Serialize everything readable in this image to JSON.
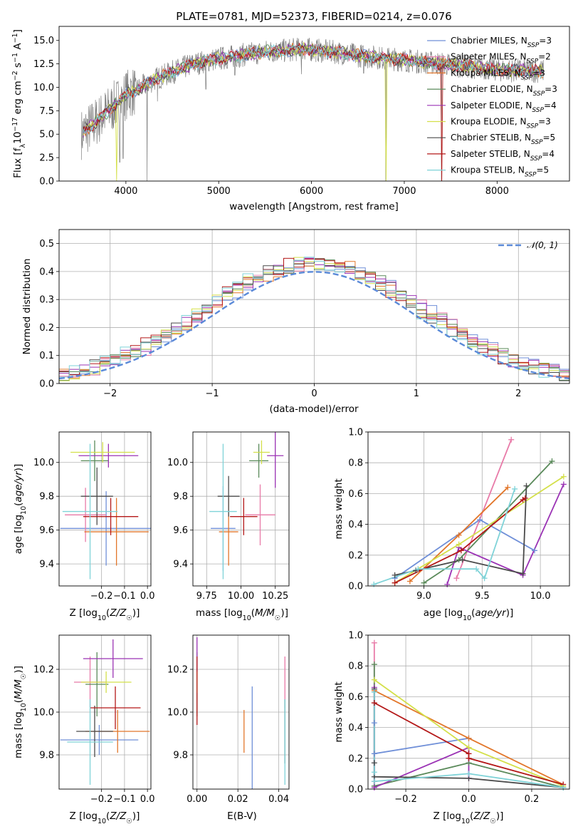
{
  "figure_title": "PLATE=0781, MJD=52373, FIBERID=0214, z=0.076",
  "legend": [
    {
      "label": "Chabrier MILES, N_SSP=3",
      "color": "#6f8fd8"
    },
    {
      "label": "Salpeter MILES, N_SSP=2",
      "color": "#e87aa8"
    },
    {
      "label": "Kroupa MILES, N_SSP=3",
      "color": "#e2762a"
    },
    {
      "label": "Chabrier ELODIE, N_SSP=3",
      "color": "#5a8a5a"
    },
    {
      "label": "Salpeter ELODIE, N_SSP=4",
      "color": "#9b33b5"
    },
    {
      "label": "Kroupa ELODIE, N_SSP=3",
      "color": "#d4e04a"
    },
    {
      "label": "Chabrier STELIB, N_SSP=5",
      "color": "#4a4a4a"
    },
    {
      "label": "Salpeter STELIB, N_SSP=4",
      "color": "#b41818"
    },
    {
      "label": "Kroupa STELIB, N_SSP=5",
      "color": "#7fd3d8"
    }
  ],
  "chart_data": [
    {
      "id": "spectrum",
      "type": "line",
      "xlabel": "wavelength [Angstrom, rest frame]",
      "ylabel": "Flux [f_λ10^-17 erg cm^-2 s^-1 A^-1]",
      "xlim": [
        3280,
        8780
      ],
      "ylim": [
        0,
        16.5
      ],
      "xticks": [
        4000,
        5000,
        6000,
        7000,
        8000
      ],
      "yticks": [
        0.0,
        2.5,
        5.0,
        7.5,
        10.0,
        12.5,
        15.0
      ],
      "grid": false,
      "legend_position": "right",
      "data_color": "#808080",
      "data_anchor_x": [
        3520,
        3700,
        3850,
        4000,
        4150,
        4300,
        4500,
        4700,
        4900,
        5100,
        5300,
        5500,
        5700,
        5900,
        6100,
        6300,
        6500,
        6700,
        6900,
        7100,
        7300,
        7500,
        7700,
        7900,
        8100,
        8300,
        8500
      ],
      "data_anchor_y": [
        5.0,
        6.5,
        7.8,
        9.2,
        9.9,
        10.8,
        11.6,
        12.4,
        12.9,
        13.2,
        13.5,
        13.8,
        13.9,
        14.1,
        13.9,
        13.7,
        13.4,
        13.2,
        13.0,
        12.8,
        12.6,
        12.4,
        12.2,
        12.0,
        11.8,
        11.8,
        11.7
      ],
      "drops": [
        {
          "x": 3935,
          "y": 2.0
        },
        {
          "x": 3970,
          "y": 2.4
        },
        {
          "x": 4228,
          "y": 0.0
        },
        {
          "x": 4340,
          "y": 8.5
        },
        {
          "x": 4861,
          "y": 9.8
        },
        {
          "x": 5175,
          "y": 11.3
        },
        {
          "x": 5892,
          "y": 11.4
        },
        {
          "x": 6563,
          "y": 11.5
        },
        {
          "x": 6800,
          "y": 0.0
        },
        {
          "x": 7400,
          "y": 0.0
        },
        {
          "x": 8540,
          "y": 9.8
        }
      ]
    },
    {
      "id": "residuals",
      "type": "histogram",
      "xlabel": "(data-model)/error",
      "ylabel": "Normed distribution",
      "xlim": [
        -2.5,
        2.5
      ],
      "ylim": [
        0,
        0.55
      ],
      "xticks": [
        -2,
        -1,
        0,
        1,
        2
      ],
      "yticks": [
        0.0,
        0.1,
        0.2,
        0.3,
        0.4,
        0.5
      ],
      "grid": true,
      "bin_width": 0.1,
      "reference_curve": {
        "label": "𝒩(0, 1)",
        "color": "#5b8ad8",
        "style": "dashed"
      },
      "legend_position": "top-right"
    },
    {
      "id": "age_vs_Z",
      "type": "errorbar",
      "xlabel": "Z [log10(Z/Z☉)]",
      "ylabel": "age  [log10(age/yr)]",
      "xlim": [
        -0.385,
        0.015
      ],
      "ylim": [
        9.27,
        10.18
      ],
      "xticks": [
        -0.2,
        -0.1,
        0.0
      ],
      "yticks": [
        9.4,
        9.6,
        9.8,
        10.0
      ],
      "grid": true,
      "points": [
        {
          "series": 0,
          "x": -0.18,
          "xerr": 0.2,
          "y": 9.61,
          "yerr": 0.22
        },
        {
          "series": 1,
          "x": -0.27,
          "xerr": 0.09,
          "y": 9.69,
          "yerr": 0.16
        },
        {
          "series": 2,
          "x": -0.135,
          "xerr": 0.14,
          "y": 9.59,
          "yerr": 0.2
        },
        {
          "series": 3,
          "x": -0.23,
          "xerr": 0.06,
          "y": 10.01,
          "yerr": 0.12
        },
        {
          "series": 4,
          "x": -0.17,
          "xerr": 0.13,
          "y": 10.04,
          "yerr": 0.07
        },
        {
          "series": 5,
          "x": -0.195,
          "xerr": 0.14,
          "y": 10.06,
          "yerr": 0.06
        },
        {
          "series": 6,
          "x": -0.22,
          "xerr": 0.07,
          "y": 9.8,
          "yerr": 0.17
        },
        {
          "series": 7,
          "x": -0.16,
          "xerr": 0.12,
          "y": 9.68,
          "yerr": 0.11
        },
        {
          "series": 8,
          "x": -0.25,
          "xerr": 0.12,
          "y": 9.71,
          "yerr": 0.4
        }
      ]
    },
    {
      "id": "age_vs_mass",
      "type": "errorbar",
      "xlabel": "mass [log10(M/M☉)]",
      "ylabel": "",
      "xlim": [
        9.65,
        10.35
      ],
      "ylim": [
        9.27,
        10.18
      ],
      "xticks": [
        9.75,
        10.0,
        10.25
      ],
      "yticks": [
        9.4,
        9.6,
        9.8,
        10.0
      ],
      "grid": true,
      "points": [
        {
          "series": 0,
          "x": 9.87,
          "xerr": 0.09,
          "y": 9.61,
          "yerr": 0.25
        },
        {
          "series": 1,
          "x": 10.14,
          "xerr": 0.11,
          "y": 9.69,
          "yerr": 0.18
        },
        {
          "series": 2,
          "x": 9.91,
          "xerr": 0.07,
          "y": 9.59,
          "yerr": 0.2
        },
        {
          "series": 3,
          "x": 10.13,
          "xerr": 0.07,
          "y": 10.01,
          "yerr": 0.1
        },
        {
          "series": 4,
          "x": 10.25,
          "xerr": 0.06,
          "y": 10.04,
          "yerr": 0.19
        },
        {
          "series": 5,
          "x": 10.15,
          "xerr": 0.06,
          "y": 10.06,
          "yerr": 0.07
        },
        {
          "series": 6,
          "x": 9.91,
          "xerr": 0.08,
          "y": 9.8,
          "yerr": 0.12
        },
        {
          "series": 7,
          "x": 10.02,
          "xerr": 0.1,
          "y": 9.68,
          "yerr": 0.11
        },
        {
          "series": 8,
          "x": 9.87,
          "xerr": 0.1,
          "y": 9.71,
          "yerr": 0.4
        }
      ]
    },
    {
      "id": "weight_vs_age",
      "type": "line",
      "xlabel": "age  [log10(age/yr)]",
      "ylabel": "mass weight",
      "xlim": [
        8.52,
        10.25
      ],
      "ylim": [
        0,
        1.0
      ],
      "xticks": [
        9.0,
        9.5,
        10.0
      ],
      "yticks": [
        0.0,
        0.2,
        0.4,
        0.6,
        0.8,
        1.0
      ],
      "grid": true,
      "series": [
        {
          "series": 0,
          "points": [
            [
              8.75,
              0.05
            ],
            [
              9.48,
              0.43
            ],
            [
              9.95,
              0.23
            ]
          ]
        },
        {
          "series": 1,
          "points": [
            [
              9.28,
              0.05
            ],
            [
              9.75,
              0.95
            ]
          ]
        },
        {
          "series": 2,
          "points": [
            [
              8.88,
              0.03
            ],
            [
              9.3,
              0.33
            ],
            [
              9.72,
              0.64
            ]
          ]
        },
        {
          "series": 3,
          "points": [
            [
              9.0,
              0.02
            ],
            [
              9.3,
              0.17
            ],
            [
              10.1,
              0.81
            ]
          ]
        },
        {
          "series": 4,
          "points": [
            [
              9.2,
              0.01
            ],
            [
              9.3,
              0.25
            ],
            [
              9.85,
              0.07
            ],
            [
              10.2,
              0.66
            ]
          ]
        },
        {
          "series": 5,
          "points": [
            [
              8.75,
              0.02
            ],
            [
              9.3,
              0.27
            ],
            [
              10.2,
              0.71
            ]
          ]
        },
        {
          "series": 6,
          "points": [
            [
              8.75,
              0.07
            ],
            [
              8.93,
              0.1
            ],
            [
              9.33,
              0.17
            ],
            [
              9.85,
              0.08
            ],
            [
              9.88,
              0.65
            ]
          ]
        },
        {
          "series": 7,
          "points": [
            [
              8.75,
              0.02
            ],
            [
              9.32,
              0.23
            ],
            [
              9.85,
              0.56
            ],
            [
              9.87,
              0.57
            ]
          ]
        },
        {
          "series": 8,
          "points": [
            [
              8.57,
              0.01
            ],
            [
              8.95,
              0.11
            ],
            [
              9.45,
              0.11
            ],
            [
              9.52,
              0.05
            ],
            [
              9.78,
              0.63
            ]
          ]
        }
      ]
    },
    {
      "id": "mass_vs_Z",
      "type": "errorbar",
      "xlabel": "Z [log10(Z/Z☉)]",
      "ylabel": "mass [log10(M/M☉)]",
      "xlim": [
        -0.385,
        0.015
      ],
      "ylim": [
        9.64,
        10.36
      ],
      "xticks": [
        -0.2,
        -0.1,
        0.0
      ],
      "yticks": [
        9.8,
        10.0,
        10.2
      ],
      "grid": true,
      "points": [
        {
          "series": 0,
          "x": -0.21,
          "xerr": 0.17,
          "y": 9.87,
          "yerr": 0.07
        },
        {
          "series": 1,
          "x": -0.25,
          "xerr": 0.07,
          "y": 10.14,
          "yerr": 0.12
        },
        {
          "series": 2,
          "x": -0.13,
          "xerr": 0.14,
          "y": 9.91,
          "yerr": 0.1
        },
        {
          "series": 3,
          "x": -0.22,
          "xerr": 0.05,
          "y": 10.13,
          "yerr": 0.15
        },
        {
          "series": 4,
          "x": -0.15,
          "xerr": 0.13,
          "y": 10.25,
          "yerr": 0.09
        },
        {
          "series": 5,
          "x": -0.18,
          "xerr": 0.11,
          "y": 10.14,
          "yerr": 0.05
        },
        {
          "series": 6,
          "x": -0.23,
          "xerr": 0.08,
          "y": 9.91,
          "yerr": 0.12
        },
        {
          "series": 7,
          "x": -0.14,
          "xerr": 0.11,
          "y": 10.02,
          "yerr": 0.1
        },
        {
          "series": 8,
          "x": -0.25,
          "xerr": 0.1,
          "y": 9.86,
          "yerr": 0.2
        }
      ]
    },
    {
      "id": "mass_vs_ebv",
      "type": "errorbar",
      "xlabel": "E(B-V)",
      "ylabel": "",
      "xlim": [
        -0.002,
        0.045
      ],
      "ylim": [
        9.64,
        10.36
      ],
      "xticks": [
        0.0,
        0.02,
        0.04
      ],
      "yticks": [
        9.8,
        10.0,
        10.2
      ],
      "grid": true,
      "points": [
        {
          "series": 0,
          "x": 0.027,
          "y": 9.87,
          "yerr": 0.25
        },
        {
          "series": 1,
          "x": 0.043,
          "y": 10.14,
          "yerr": 0.12
        },
        {
          "series": 2,
          "x": 0.023,
          "y": 9.91,
          "yerr": 0.1
        },
        {
          "series": 3,
          "x": 0.0,
          "y": 10.13,
          "yerr": 0.15
        },
        {
          "series": 4,
          "x": 0.0,
          "y": 10.25,
          "yerr": 0.1
        },
        {
          "series": 5,
          "x": 0.0,
          "y": 10.14,
          "yerr": 0.05
        },
        {
          "series": 6,
          "x": 0.043,
          "y": 9.91,
          "yerr": 0.15
        },
        {
          "series": 7,
          "x": 0.0,
          "y": 10.1,
          "yerr": 0.16
        },
        {
          "series": 8,
          "x": 0.043,
          "y": 9.86,
          "yerr": 0.2
        }
      ]
    },
    {
      "id": "weight_vs_Z",
      "type": "line",
      "xlabel": "Z [log10(Z/Z☉)]",
      "ylabel": "mass weight",
      "xlim": [
        -0.32,
        0.32
      ],
      "ylim": [
        0,
        1.0
      ],
      "xticks": [
        -0.2,
        0.0,
        0.2
      ],
      "yticks": [
        0.0,
        0.2,
        0.4,
        0.6,
        0.8,
        1.0
      ],
      "grid": true,
      "series": [
        {
          "series": 0,
          "points": [
            [
              -0.3,
              0.43
            ],
            [
              -0.3,
              0.23
            ],
            [
              0.0,
              0.33
            ]
          ]
        },
        {
          "series": 1,
          "points": [
            [
              -0.3,
              0.95
            ],
            [
              -0.3,
              0.05
            ]
          ]
        },
        {
          "series": 2,
          "points": [
            [
              -0.3,
              0.64
            ],
            [
              0.0,
              0.33
            ],
            [
              0.3,
              0.03
            ]
          ]
        },
        {
          "series": 3,
          "points": [
            [
              -0.3,
              0.81
            ],
            [
              -0.3,
              0.02
            ],
            [
              0.0,
              0.17
            ],
            [
              0.3,
              0.01
            ]
          ]
        },
        {
          "series": 4,
          "points": [
            [
              -0.3,
              0.66
            ],
            [
              -0.3,
              0.01
            ],
            [
              0.0,
              0.27
            ],
            [
              0.0,
              0.07
            ]
          ]
        },
        {
          "series": 5,
          "points": [
            [
              -0.3,
              0.71
            ],
            [
              0.0,
              0.27
            ],
            [
              0.3,
              0.02
            ]
          ]
        },
        {
          "series": 6,
          "points": [
            [
              -0.3,
              0.65
            ],
            [
              -0.3,
              0.17
            ],
            [
              -0.3,
              0.08
            ],
            [
              0.0,
              0.07
            ],
            [
              0.3,
              0.01
            ]
          ]
        },
        {
          "series": 7,
          "points": [
            [
              -0.3,
              0.56
            ],
            [
              0.0,
              0.23
            ],
            [
              0.0,
              0.2
            ],
            [
              0.3,
              0.03
            ]
          ]
        },
        {
          "series": 8,
          "points": [
            [
              -0.3,
              0.63
            ],
            [
              -0.3,
              0.11
            ],
            [
              -0.3,
              0.05
            ],
            [
              0.0,
              0.1
            ],
            [
              0.3,
              0.01
            ]
          ]
        }
      ]
    }
  ]
}
